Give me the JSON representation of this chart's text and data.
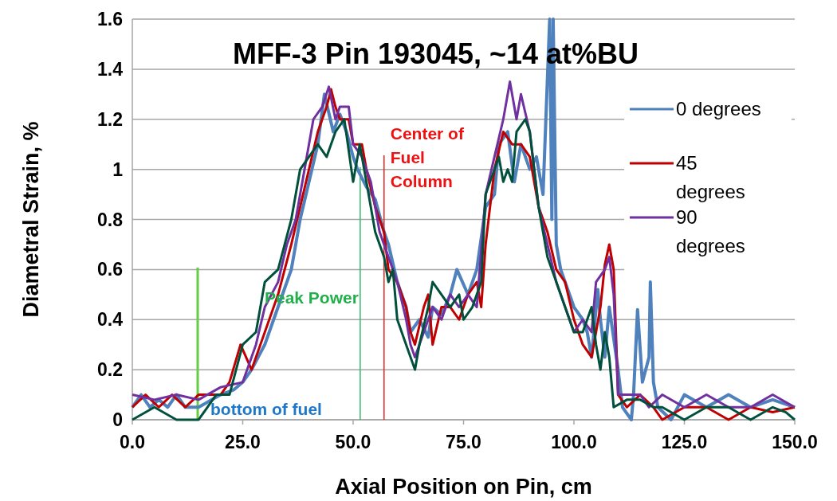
{
  "chart_data": {
    "type": "line",
    "title": "MFF-3 Pin 193045, ~14 at%BU",
    "xlabel": "Axial Position on Pin, cm",
    "ylabel": "Diametral Strain, %",
    "xlim": [
      0,
      150
    ],
    "xticks": [
      {
        "value": 0,
        "label": "0.0"
      },
      {
        "value": 25,
        "label": "25.0"
      },
      {
        "value": 50,
        "label": "50.0"
      },
      {
        "value": 75,
        "label": "75.0"
      },
      {
        "value": 100,
        "label": "100.0"
      },
      {
        "value": 125,
        "label": "125.0"
      },
      {
        "value": 150,
        "label": "150.0"
      }
    ],
    "ylim": [
      0,
      1.6
    ],
    "yticks": [
      0,
      0.2,
      0.4,
      0.6,
      0.8,
      1,
      1.2,
      1.4,
      1.6
    ],
    "grid": "y",
    "legend": "right",
    "series": [
      {
        "name": "0 degrees",
        "color": "#4f81bd",
        "x": [
          0,
          2,
          4,
          6,
          8,
          10,
          12,
          15,
          18,
          20,
          23,
          25,
          27,
          30,
          33,
          36,
          38,
          40,
          42,
          43.5,
          45.5,
          47,
          48.5,
          50,
          51,
          53,
          55,
          57,
          58,
          60,
          62,
          63,
          65,
          67,
          68,
          70,
          72,
          73.5,
          76,
          78,
          80,
          82,
          83,
          85,
          86.5,
          88,
          90,
          91.5,
          93,
          94.5,
          95,
          95.3,
          96,
          97,
          100,
          102,
          103,
          104,
          105.4,
          106,
          107,
          108,
          110,
          111,
          113,
          113.5,
          114.4,
          115.5,
          117,
          117.3,
          118,
          119,
          122,
          125,
          130,
          135,
          140,
          145,
          150
        ],
        "values": [
          0.05,
          0.1,
          0.05,
          0.08,
          0.05,
          0.1,
          0.05,
          0.05,
          0.08,
          0.1,
          0.12,
          0.15,
          0.2,
          0.3,
          0.45,
          0.6,
          0.8,
          0.95,
          1.1,
          1.3,
          1.15,
          1.22,
          1.15,
          1.05,
          1.0,
          0.93,
          0.88,
          0.75,
          0.7,
          0.55,
          0.45,
          0.35,
          0.4,
          0.33,
          0.45,
          0.42,
          0.5,
          0.6,
          0.5,
          0.6,
          0.85,
          0.9,
          1.1,
          1.15,
          0.95,
          1.1,
          1.0,
          1.05,
          0.9,
          1.6,
          0.8,
          1.6,
          0.7,
          0.6,
          0.45,
          0.4,
          0.35,
          0.25,
          0.52,
          0.4,
          0.25,
          0.45,
          0.2,
          0.05,
          0,
          0.1,
          0.44,
          0.15,
          0.25,
          0.55,
          0.15,
          0.05,
          0,
          0.1,
          0.05,
          0.1,
          0.05,
          0.08,
          0.05
        ]
      },
      {
        "name": "45 degrees",
        "color": "#c00000",
        "x": [
          0,
          3,
          6,
          9,
          12,
          15,
          20,
          22,
          24.5,
          27,
          30,
          33,
          36,
          38,
          40,
          42,
          44,
          45,
          46,
          47,
          49,
          50,
          52,
          53,
          55,
          57,
          58,
          60,
          62,
          63,
          64,
          66,
          67,
          68,
          70,
          72,
          74,
          76,
          78,
          79,
          80,
          82,
          84,
          86,
          88,
          90,
          92,
          94,
          96,
          98,
          100,
          102,
          104,
          105,
          106,
          107,
          108,
          109,
          110,
          112,
          115,
          118,
          120,
          125,
          130,
          135,
          140,
          145,
          150
        ],
        "values": [
          0.05,
          0.1,
          0.05,
          0.1,
          0.05,
          0.1,
          0.1,
          0.15,
          0.3,
          0.2,
          0.35,
          0.5,
          0.7,
          0.85,
          1.0,
          1.15,
          1.25,
          1.32,
          1.25,
          1.2,
          1.2,
          1.1,
          1.1,
          1.0,
          0.85,
          0.75,
          0.6,
          0.55,
          0.45,
          0.35,
          0.3,
          0.45,
          0.5,
          0.3,
          0.45,
          0.45,
          0.4,
          0.5,
          0.55,
          0.45,
          0.7,
          1.0,
          1.15,
          1.1,
          1.1,
          1.05,
          0.85,
          0.75,
          0.6,
          0.55,
          0.4,
          0.3,
          0.25,
          0.35,
          0.45,
          0.62,
          0.7,
          0.6,
          0.1,
          0.05,
          0.1,
          0.05,
          0,
          0.05,
          0.05,
          0,
          0.05,
          0.03,
          0.05
        ]
      },
      {
        "name": "90 degrees",
        "color": "#7030a0",
        "x": [
          0,
          5,
          10,
          15,
          20,
          25,
          28,
          30,
          33,
          35,
          37,
          39,
          41,
          43,
          44.5,
          46,
          47,
          49,
          50,
          52,
          54,
          56,
          58,
          60,
          62,
          63,
          64,
          66,
          68,
          70,
          72,
          74,
          76,
          78,
          80,
          82,
          84,
          85.5,
          87,
          88,
          90,
          92,
          94,
          96,
          98,
          100,
          102,
          104,
          105,
          107,
          108,
          109,
          110,
          115,
          117,
          120,
          125,
          130,
          135,
          140,
          145,
          150
        ],
        "values": [
          0.1,
          0.08,
          0.1,
          0.08,
          0.13,
          0.15,
          0.3,
          0.45,
          0.55,
          0.7,
          0.8,
          1.0,
          1.2,
          1.25,
          1.33,
          1.2,
          1.25,
          1.25,
          1.1,
          1.05,
          0.95,
          0.75,
          0.65,
          0.55,
          0.4,
          0.3,
          0.25,
          0.35,
          0.45,
          0.4,
          0.5,
          0.45,
          0.5,
          0.45,
          0.9,
          1.05,
          1.2,
          1.35,
          1.2,
          1.3,
          1.15,
          0.85,
          0.7,
          0.55,
          0.45,
          0.35,
          0.4,
          0.35,
          0.55,
          0.6,
          0.65,
          0.5,
          0.1,
          0.1,
          0.05,
          0.1,
          0.05,
          0.1,
          0.05,
          0.05,
          0.1,
          0.05
        ]
      },
      {
        "color": "#00503c",
        "x": [
          0,
          5,
          10,
          15,
          17,
          19,
          22,
          25,
          28,
          30,
          33,
          36,
          38,
          40,
          42,
          44,
          46,
          48,
          50,
          51.5,
          53,
          55,
          57,
          58,
          59,
          60,
          62,
          64,
          65,
          67,
          68,
          70,
          72,
          74,
          75,
          77,
          78,
          79,
          80,
          82,
          83,
          84,
          85,
          86,
          87,
          89,
          90,
          92,
          94,
          96,
          98,
          100,
          102,
          104,
          105,
          106,
          107,
          108,
          109,
          112,
          115,
          118,
          120,
          125,
          130,
          135,
          140,
          145,
          148,
          150
        ],
        "values": [
          0,
          0.05,
          0,
          0,
          0.05,
          0.1,
          0.1,
          0.3,
          0.35,
          0.55,
          0.6,
          0.8,
          1.0,
          1.05,
          1.1,
          1.05,
          1.15,
          1.2,
          0.95,
          1.1,
          0.95,
          0.75,
          0.65,
          0.55,
          0.6,
          0.4,
          0.3,
          0.2,
          0.3,
          0.45,
          0.55,
          0.5,
          0.45,
          0.5,
          0.4,
          0.45,
          0.5,
          0.55,
          0.9,
          1.0,
          1.05,
          0.95,
          1.0,
          0.95,
          1.15,
          1.2,
          1.15,
          0.85,
          0.65,
          0.55,
          0.45,
          0.35,
          0.35,
          0.45,
          0.3,
          0.2,
          0.35,
          0.25,
          0.05,
          0.08,
          0.08,
          0.05,
          0.05,
          0,
          0.05,
          0.05,
          0,
          0.05,
          0.03,
          0
        ]
      }
    ],
    "ref_lines": [
      {
        "axis": "x",
        "value": 14.8,
        "color": "#66cc44",
        "label": "bottom of fuel"
      },
      {
        "axis": "x",
        "value": 51.6,
        "color": "#33bb66",
        "label": "Peak Power"
      },
      {
        "axis": "x",
        "value": 57,
        "color": "#ee2222",
        "label": "Center of Fuel Column"
      }
    ]
  }
}
